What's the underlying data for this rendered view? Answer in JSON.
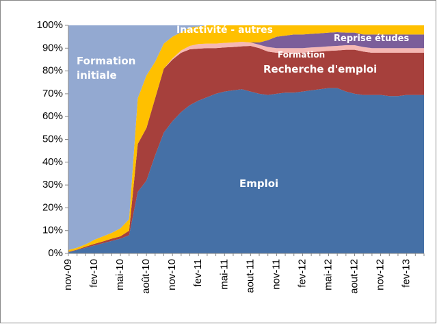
{
  "chart_data": {
    "type": "stacked-area",
    "categories": [
      "nov-09",
      null,
      null,
      "fev-10",
      null,
      null,
      "mai-10",
      null,
      null,
      "août-10",
      null,
      null,
      "nov-10",
      null,
      null,
      "fev-11",
      null,
      null,
      "mai-11",
      null,
      null,
      "aout-11",
      null,
      null,
      "nov-11",
      null,
      null,
      "fev-12",
      null,
      null,
      "mai-12",
      null,
      null,
      "aout-12",
      null,
      null,
      "nov-12",
      null,
      null,
      "fev-13",
      null,
      null
    ],
    "series": [
      {
        "name": "Emploi",
        "color": "#4570a6",
        "values": [
          0.5,
          1.5,
          2.5,
          3.5,
          4.5,
          5.5,
          6.5,
          8,
          27,
          32,
          43,
          53,
          58,
          62,
          65,
          67,
          68.5,
          70,
          71,
          71.5,
          72,
          71,
          70,
          69.5,
          70,
          70.5,
          70.5,
          71,
          71.5,
          72,
          72.5,
          72.5,
          71,
          70,
          69.5,
          69.5,
          69.5,
          69,
          69,
          69.5,
          69.5,
          69.5
        ]
      },
      {
        "name": "Recherche d'emploi",
        "color": "#a6403c",
        "values": [
          0.2,
          0.2,
          0.5,
          0.7,
          0.8,
          1,
          1,
          2,
          21,
          23,
          25,
          28,
          27,
          26,
          24.5,
          22.8,
          21.5,
          20,
          19.3,
          19,
          18.8,
          20,
          20,
          19,
          18,
          17.5,
          17.5,
          17,
          16.8,
          16.5,
          16.3,
          16.5,
          18.3,
          19.3,
          19,
          18.5,
          18.5,
          19,
          19,
          18.5,
          18.5,
          18.5
        ]
      },
      {
        "name": "Formation",
        "color": "#f5b8b4",
        "values": [
          0,
          0,
          0,
          0,
          0,
          0,
          0,
          0,
          0,
          0,
          0,
          0,
          0.5,
          1,
          1.5,
          2,
          2,
          2,
          2,
          2,
          2,
          1.5,
          1.5,
          2,
          2,
          2,
          2,
          2,
          2,
          2,
          2,
          2,
          2,
          2,
          2,
          2,
          2,
          2,
          2,
          2,
          2,
          2
        ]
      },
      {
        "name": "Reprise études",
        "color": "#7b5e9a",
        "values": [
          0,
          0,
          0,
          0,
          0,
          0,
          0,
          0,
          0,
          0,
          0,
          0,
          0,
          0,
          0,
          0,
          0,
          0,
          0,
          0,
          0,
          0,
          1,
          3,
          5,
          5.5,
          6,
          6,
          6,
          6,
          6,
          6,
          5.5,
          5.5,
          5.5,
          6,
          6,
          6,
          6,
          6,
          6,
          6
        ]
      },
      {
        "name": "Inactivité - autres",
        "color": "#ffc000",
        "values": [
          0.8,
          0.8,
          1,
          1.8,
          2.2,
          2.5,
          3.5,
          5,
          20,
          23,
          16,
          11,
          9.5,
          8,
          8,
          7.7,
          8,
          8,
          7.7,
          7.5,
          7.2,
          7.5,
          7.5,
          6.5,
          5,
          4.5,
          4,
          4,
          3.7,
          3.5,
          3.2,
          3,
          3.2,
          3.2,
          4,
          4,
          4,
          4,
          4,
          4,
          4,
          4
        ]
      },
      {
        "name": "Formation initiale",
        "color": "#93a9d1",
        "values": [
          98.5,
          97.5,
          96,
          94,
          92.5,
          91,
          89,
          85,
          32,
          22,
          16,
          8,
          5,
          3,
          1,
          0.5,
          0,
          0,
          0,
          0,
          0,
          0,
          0,
          0,
          0,
          0,
          0,
          0,
          0,
          0,
          0,
          0,
          0,
          0,
          0,
          0,
          0,
          0,
          0,
          0,
          0,
          0
        ]
      }
    ],
    "ylim": [
      0,
      100
    ],
    "yticks": [
      {
        "value": 0,
        "label": "0%"
      },
      {
        "value": 10,
        "label": "10%"
      },
      {
        "value": 20,
        "label": "20%"
      },
      {
        "value": 30,
        "label": "30%"
      },
      {
        "value": 40,
        "label": "40%"
      },
      {
        "value": 50,
        "label": "50%"
      },
      {
        "value": 60,
        "label": "60%"
      },
      {
        "value": 70,
        "label": "70%"
      },
      {
        "value": 80,
        "label": "80%"
      },
      {
        "value": 90,
        "label": "90%"
      },
      {
        "value": 100,
        "label": "100%"
      }
    ]
  }
}
